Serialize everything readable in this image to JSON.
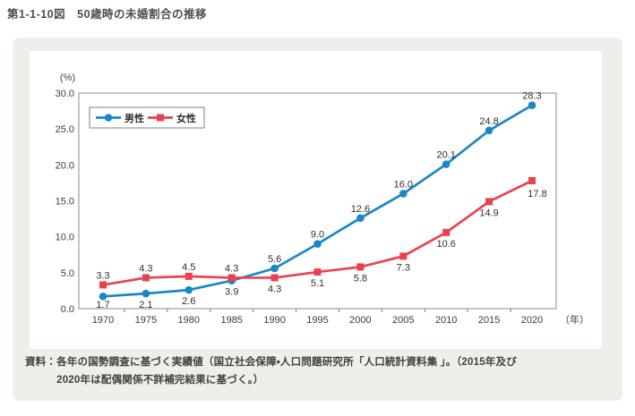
{
  "title": "第1-1-10図　50歳時の未婚割合の推移",
  "source": {
    "label": "資料：",
    "line1": "各年の国勢調査に基づく実績値（国立社会保障・人口問題研究所「人口統計資料集 」。（2015年及び",
    "line2": "2020年は配偶関係不詳補完結果に基づく。）"
  },
  "chart_data": {
    "type": "line",
    "x": [
      1970,
      1975,
      1980,
      1985,
      1990,
      1995,
      2000,
      2005,
      2010,
      2015,
      2020
    ],
    "x_axis_suffix": "（年）",
    "y_unit_label": "(%)",
    "ylim": [
      0,
      30
    ],
    "ytick_step": 5,
    "grid": false,
    "legend_position": "top-left",
    "colors": {
      "male_blue": "#1b86c8",
      "female_red": "#e9424f"
    },
    "series": [
      {
        "name": "男性",
        "color": "#1b86c8",
        "marker": "circle",
        "values": [
          1.7,
          2.1,
          2.6,
          3.9,
          5.6,
          9.0,
          12.6,
          16.0,
          20.1,
          24.8,
          28.3
        ],
        "label_pos": [
          "below",
          "below",
          "below",
          "below",
          "above",
          "above",
          "above",
          "above",
          "above",
          "above",
          "above"
        ]
      },
      {
        "name": "女性",
        "color": "#e9424f",
        "marker": "square",
        "values": [
          3.3,
          4.3,
          4.5,
          4.3,
          4.3,
          5.1,
          5.8,
          7.3,
          10.6,
          14.9,
          17.8
        ],
        "label_pos": [
          "above",
          "above",
          "above",
          "above",
          "below",
          "below",
          "below",
          "below",
          "below",
          "below",
          "below-right"
        ]
      }
    ]
  }
}
